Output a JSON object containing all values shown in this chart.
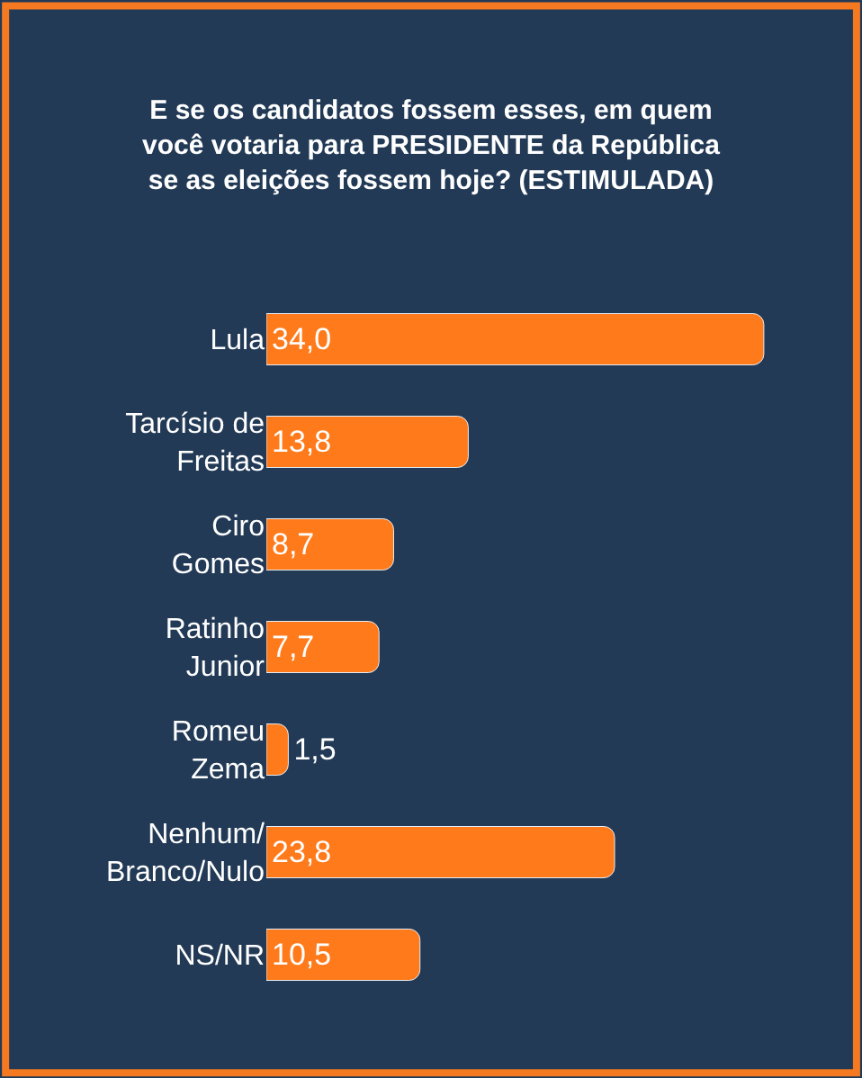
{
  "chart_data": {
    "type": "bar",
    "orientation": "horizontal",
    "title": "E se os candidatos fossem esses, em quem\nvocê votaria para PRESIDENTE da República\nse as eleições fossem hoje? (ESTIMULADA)",
    "categories": [
      "Lula",
      "Tarcísio de\nFreitas",
      "Ciro\nGomes",
      "Ratinho\nJunior",
      "Romeu\nZema",
      "Nenhum/\nBranco/Nulo",
      "NS/NR"
    ],
    "values": [
      34.0,
      13.8,
      8.7,
      7.7,
      1.5,
      23.8,
      10.5
    ],
    "value_labels": [
      "34,0",
      "13,8",
      "8,7",
      "7,7",
      "1,5",
      "23,8",
      "10,5"
    ],
    "color": "#ff7a1a",
    "tick_labels": "y",
    "grid": false
  }
}
